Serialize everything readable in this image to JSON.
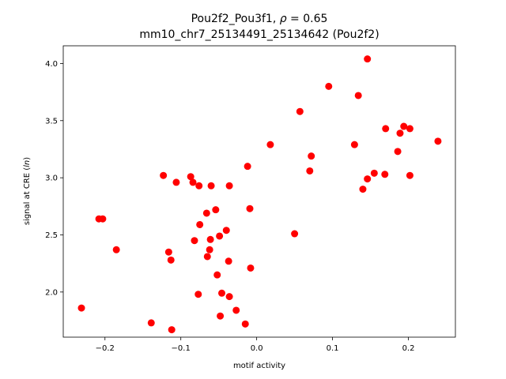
{
  "chart_data": {
    "type": "scatter",
    "title_line1_prefix": "Pou2f2_Pou3f1, ",
    "title_rho_symbol": "ρ",
    "title_rho_value": " = 0.65",
    "title_line2": "mm10_chr7_25134491_25134642 (Pou2f2)",
    "xlabel": "motif activity",
    "ylabel_prefix": "signal at CRE (",
    "ylabel_italic": "ln",
    "ylabel_suffix": ")",
    "xlim": [
      -0.255,
      0.262
    ],
    "ylim": [
      1.605,
      4.155
    ],
    "xticks": [
      -0.2,
      -0.1,
      0.0,
      0.1,
      0.2
    ],
    "xtick_labels": [
      "−0.2",
      "−0.1",
      "0.0",
      "0.1",
      "0.2"
    ],
    "yticks": [
      2.0,
      2.5,
      3.0,
      3.5,
      4.0
    ],
    "ytick_labels": [
      "2.0",
      "2.5",
      "3.0",
      "3.5",
      "4.0"
    ],
    "grid": false,
    "legend": "none",
    "point_color": "#ff0000",
    "points": [
      [
        -0.231,
        1.86
      ],
      [
        -0.208,
        2.64
      ],
      [
        -0.203,
        2.64
      ],
      [
        -0.185,
        2.37
      ],
      [
        -0.139,
        1.73
      ],
      [
        -0.123,
        3.02
      ],
      [
        -0.116,
        2.35
      ],
      [
        -0.113,
        2.28
      ],
      [
        -0.112,
        1.67
      ],
      [
        -0.106,
        2.96
      ],
      [
        -0.087,
        3.01
      ],
      [
        -0.084,
        2.96
      ],
      [
        -0.082,
        2.45
      ],
      [
        -0.077,
        1.98
      ],
      [
        -0.076,
        2.93
      ],
      [
        -0.075,
        2.59
      ],
      [
        -0.066,
        2.69
      ],
      [
        -0.065,
        2.31
      ],
      [
        -0.062,
        2.37
      ],
      [
        -0.061,
        2.46
      ],
      [
        -0.06,
        2.93
      ],
      [
        -0.054,
        2.72
      ],
      [
        -0.052,
        2.15
      ],
      [
        -0.049,
        2.49
      ],
      [
        -0.048,
        1.79
      ],
      [
        -0.046,
        1.99
      ],
      [
        -0.04,
        2.54
      ],
      [
        -0.037,
        2.27
      ],
      [
        -0.036,
        1.96
      ],
      [
        -0.036,
        2.93
      ],
      [
        -0.027,
        1.84
      ],
      [
        -0.015,
        1.72
      ],
      [
        -0.012,
        3.1
      ],
      [
        -0.009,
        2.73
      ],
      [
        -0.008,
        2.21
      ],
      [
        0.018,
        3.29
      ],
      [
        0.05,
        2.51
      ],
      [
        0.057,
        3.58
      ],
      [
        0.07,
        3.06
      ],
      [
        0.072,
        3.19
      ],
      [
        0.095,
        3.8
      ],
      [
        0.129,
        3.29
      ],
      [
        0.134,
        3.72
      ],
      [
        0.14,
        2.9
      ],
      [
        0.146,
        4.04
      ],
      [
        0.146,
        2.99
      ],
      [
        0.155,
        3.04
      ],
      [
        0.169,
        3.03
      ],
      [
        0.17,
        3.43
      ],
      [
        0.186,
        3.23
      ],
      [
        0.189,
        3.39
      ],
      [
        0.194,
        3.45
      ],
      [
        0.202,
        3.43
      ],
      [
        0.202,
        3.02
      ],
      [
        0.239,
        3.32
      ]
    ]
  }
}
